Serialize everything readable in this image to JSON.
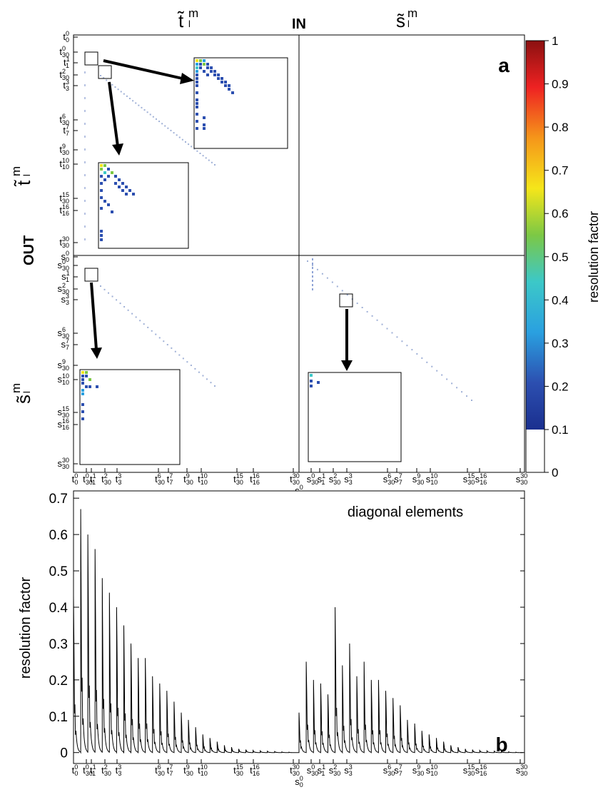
{
  "panel_a": {
    "label": "a",
    "in_label": "IN",
    "out_label": "OUT",
    "col_headers": [
      "t̃",
      "s̃"
    ],
    "col_header_sup": "m",
    "col_header_sub": "l",
    "colorbar": {
      "label": "resolution factor",
      "ticks": [
        "0",
        "0.1",
        "0.2",
        "0.3",
        "0.4",
        "0.5",
        "0.6",
        "0.7",
        "0.8",
        "0.9",
        "1"
      ]
    },
    "t_ticks": [
      {
        "b": "t",
        "sub": "0",
        "sup": "0"
      },
      {
        "b": "t",
        "sub": "30",
        "sup": "0"
      },
      {
        "b": "t",
        "sub": "1",
        "sup": "1"
      },
      {
        "b": "t",
        "sub": "30",
        "sup": "2"
      },
      {
        "b": "t",
        "sub": "3",
        "sup": "3"
      },
      {
        "b": "t",
        "sub": "30",
        "sup": "6"
      },
      {
        "b": "t",
        "sub": "7",
        "sup": "7"
      },
      {
        "b": "t",
        "sub": "30",
        "sup": "9"
      },
      {
        "b": "t",
        "sub": "10",
        "sup": "10"
      },
      {
        "b": "t",
        "sub": "30",
        "sup": "15"
      },
      {
        "b": "t",
        "sub": "16",
        "sup": "16"
      },
      {
        "b": "t",
        "sub": "30",
        "sup": "30"
      }
    ],
    "s_ticks": [
      {
        "b": "s",
        "sub": "0",
        "sup": "0"
      },
      {
        "b": "s",
        "sub": "30",
        "sup": "0"
      },
      {
        "b": "s",
        "sub": "1",
        "sup": "1"
      },
      {
        "b": "s",
        "sub": "30",
        "sup": "2"
      },
      {
        "b": "s",
        "sub": "3",
        "sup": "3"
      },
      {
        "b": "s",
        "sub": "30",
        "sup": "6"
      },
      {
        "b": "s",
        "sub": "7",
        "sup": "7"
      },
      {
        "b": "s",
        "sub": "30",
        "sup": "9"
      },
      {
        "b": "s",
        "sub": "10",
        "sup": "10"
      },
      {
        "b": "s",
        "sub": "30",
        "sup": "15"
      },
      {
        "b": "s",
        "sub": "16",
        "sup": "16"
      },
      {
        "b": "s",
        "sub": "30",
        "sup": "30"
      }
    ]
  },
  "chart_data": {
    "type": "line",
    "panel_label": "b",
    "annotation": "diagonal elements",
    "ylabel": "resolution factor",
    "ylim": [
      -0.03,
      0.72
    ],
    "yticks": [
      0,
      0.1,
      0.2,
      0.3,
      0.4,
      0.5,
      0.6,
      0.7
    ],
    "ytick_labels": [
      "0",
      "0.1",
      "0.2",
      "0.3",
      "0.4",
      "0.5",
      "0.6",
      "0.7"
    ],
    "peaks_t_block": [
      0.43,
      0.67,
      0.6,
      0.56,
      0.48,
      0.44,
      0.4,
      0.35,
      0.3,
      0.26,
      0.26,
      0.21,
      0.19,
      0.17,
      0.14,
      0.11,
      0.09,
      0.07,
      0.05,
      0.04,
      0.03,
      0.02,
      0.015,
      0.01,
      0.008,
      0.006,
      0.005,
      0.004,
      0.003,
      0.002,
      0.001
    ],
    "peaks_s_block": [
      0.11,
      0.25,
      0.2,
      0.19,
      0.16,
      0.4,
      0.24,
      0.3,
      0.21,
      0.25,
      0.2,
      0.2,
      0.17,
      0.15,
      0.13,
      0.09,
      0.08,
      0.06,
      0.05,
      0.04,
      0.03,
      0.02,
      0.015,
      0.01,
      0.008,
      0.006,
      0.005,
      0.004,
      0.003,
      0.002,
      0.001
    ]
  }
}
